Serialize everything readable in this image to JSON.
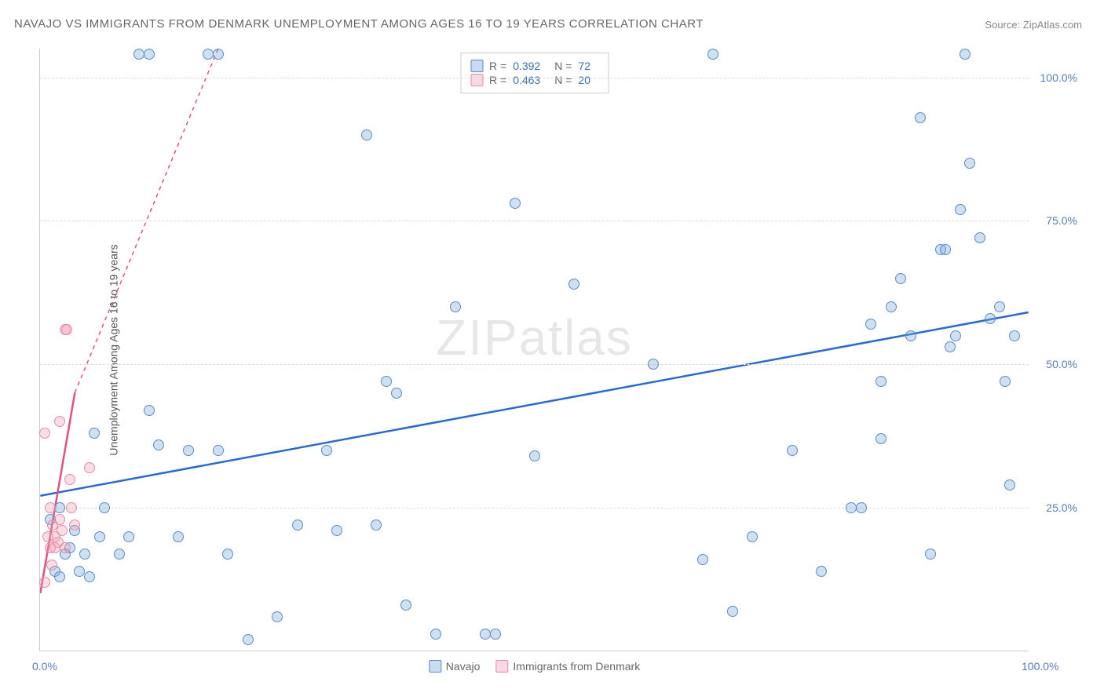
{
  "chart": {
    "type": "scatter",
    "title": "NAVAJO VS IMMIGRANTS FROM DENMARK UNEMPLOYMENT AMONG AGES 16 TO 19 YEARS CORRELATION CHART",
    "source_label": "Source:",
    "source_name": "ZipAtlas.com",
    "ylabel": "Unemployment Among Ages 16 to 19 years",
    "watermark": "ZIPatlas",
    "background_color": "#ffffff",
    "grid_color": "#dddddd",
    "axis_color": "#cccccc",
    "title_color": "#666666",
    "title_fontsize": 15,
    "label_fontsize": 14,
    "tick_color": "#5a7bb8",
    "xlim": [
      0,
      100
    ],
    "ylim": [
      0,
      105
    ],
    "ytick_values": [
      25,
      50,
      75,
      100
    ],
    "ytick_labels": [
      "25.0%",
      "50.0%",
      "75.0%",
      "100.0%"
    ],
    "xtick_values": [
      0,
      100
    ],
    "xtick_labels": [
      "0.0%",
      "100.0%"
    ],
    "stats_legend": [
      {
        "color": "blue",
        "r_label": "R =",
        "r_value": "0.392",
        "n_label": "N =",
        "n_value": "72"
      },
      {
        "color": "pink",
        "r_label": "R =",
        "r_value": "0.463",
        "n_label": "N =",
        "n_value": "20"
      }
    ],
    "bottom_legend": [
      {
        "color": "blue",
        "label": "Navajo"
      },
      {
        "color": "pink",
        "label": "Immigrants from Denmark"
      }
    ],
    "series": [
      {
        "name": "Navajo",
        "color_class": "blue",
        "marker_color": "#a8c5e8",
        "marker_border": "#5a8bc9",
        "marker_size": 14,
        "trend": {
          "x1": 0,
          "y1": 27,
          "x2": 100,
          "y2": 59,
          "color": "#2a6acc",
          "width": 2.5,
          "dash_after_x": null
        },
        "points": [
          [
            1,
            23
          ],
          [
            1.5,
            14
          ],
          [
            2,
            25
          ],
          [
            2,
            13
          ],
          [
            2.5,
            17
          ],
          [
            3,
            18
          ],
          [
            3.5,
            21
          ],
          [
            4,
            14
          ],
          [
            4.5,
            17
          ],
          [
            5,
            13
          ],
          [
            5.5,
            38
          ],
          [
            6,
            20
          ],
          [
            6.5,
            25
          ],
          [
            8,
            17
          ],
          [
            9,
            20
          ],
          [
            10,
            104
          ],
          [
            11,
            104
          ],
          [
            11,
            42
          ],
          [
            12,
            36
          ],
          [
            14,
            20
          ],
          [
            15,
            35
          ],
          [
            17,
            104
          ],
          [
            18,
            104
          ],
          [
            18,
            35
          ],
          [
            19,
            17
          ],
          [
            21,
            2
          ],
          [
            24,
            6
          ],
          [
            26,
            22
          ],
          [
            29,
            35
          ],
          [
            30,
            21
          ],
          [
            33,
            90
          ],
          [
            34,
            22
          ],
          [
            35,
            47
          ],
          [
            36,
            45
          ],
          [
            37,
            8
          ],
          [
            40,
            3
          ],
          [
            42,
            60
          ],
          [
            45,
            3
          ],
          [
            46,
            3
          ],
          [
            48,
            78
          ],
          [
            50,
            34
          ],
          [
            54,
            64
          ],
          [
            62,
            50
          ],
          [
            67,
            16
          ],
          [
            68,
            104
          ],
          [
            70,
            7
          ],
          [
            72,
            20
          ],
          [
            76,
            35
          ],
          [
            79,
            14
          ],
          [
            82,
            25
          ],
          [
            83,
            25
          ],
          [
            84,
            57
          ],
          [
            85,
            47
          ],
          [
            85,
            37
          ],
          [
            86,
            60
          ],
          [
            87,
            65
          ],
          [
            88,
            55
          ],
          [
            89,
            93
          ],
          [
            90,
            17
          ],
          [
            91,
            70
          ],
          [
            91.5,
            70
          ],
          [
            92,
            53
          ],
          [
            92.5,
            55
          ],
          [
            93,
            77
          ],
          [
            93.5,
            104
          ],
          [
            94,
            85
          ],
          [
            95,
            72
          ],
          [
            96,
            58
          ],
          [
            97,
            60
          ],
          [
            97.5,
            47
          ],
          [
            98,
            29
          ],
          [
            98.5,
            55
          ]
        ]
      },
      {
        "name": "Immigrants from Denmark",
        "color_class": "pink",
        "marker_color": "#f5c0d0",
        "marker_border": "#e68aa6",
        "marker_size": 14,
        "trend": {
          "x1": 0,
          "y1": 10,
          "x2": 3.5,
          "y2": 45,
          "color": "#e05080",
          "width": 2.5,
          "dash_ext": {
            "x2": 18,
            "y2": 105
          }
        },
        "points": [
          [
            0.5,
            12
          ],
          [
            0.5,
            38
          ],
          [
            0.8,
            20
          ],
          [
            1,
            25
          ],
          [
            1,
            18
          ],
          [
            1.2,
            15
          ],
          [
            1.3,
            22
          ],
          [
            1.5,
            20
          ],
          [
            1.5,
            18
          ],
          [
            1.8,
            19
          ],
          [
            2,
            40
          ],
          [
            2,
            23
          ],
          [
            2.2,
            21
          ],
          [
            2.5,
            18
          ],
          [
            2.5,
            56
          ],
          [
            2.7,
            56
          ],
          [
            3,
            30
          ],
          [
            3.2,
            25
          ],
          [
            3.5,
            22
          ],
          [
            5,
            32
          ]
        ]
      }
    ]
  }
}
